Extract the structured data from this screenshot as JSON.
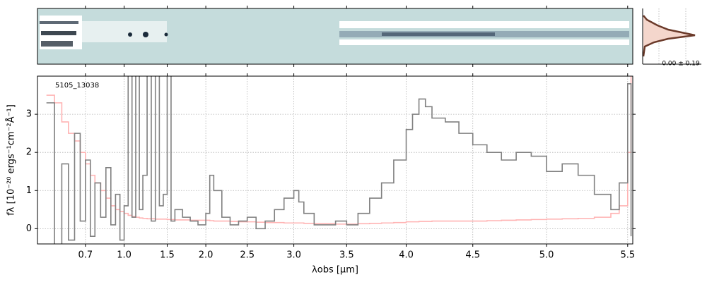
{
  "chart_data": {
    "type": "step",
    "annotation": "5105_13038",
    "profile_label": "0.00 ± 0.19",
    "x_label": "λobs [μm]",
    "y_label": "fλ [10⁻²⁰ ergs⁻¹cm⁻²Å⁻¹]",
    "x": [
      0.52,
      0.55,
      0.58,
      0.61,
      0.64,
      0.67,
      0.7,
      0.73,
      0.76,
      0.8,
      0.84,
      0.88,
      0.92,
      0.96,
      1.0,
      1.04,
      1.08,
      1.12,
      1.16,
      1.2,
      1.25,
      1.3,
      1.35,
      1.4,
      1.45,
      1.5,
      1.55,
      1.6,
      1.7,
      1.8,
      1.9,
      2.0,
      2.05,
      2.1,
      2.2,
      2.3,
      2.4,
      2.5,
      2.6,
      2.7,
      2.8,
      2.9,
      3.0,
      3.05,
      3.1,
      3.2,
      3.3,
      3.4,
      3.5,
      3.6,
      3.7,
      3.8,
      3.9,
      4.0,
      4.05,
      4.1,
      4.15,
      4.2,
      4.3,
      4.4,
      4.5,
      4.6,
      4.7,
      4.8,
      4.9,
      5.0,
      5.1,
      5.2,
      5.3,
      5.4,
      5.45,
      5.5,
      5.52
    ],
    "series": [
      {
        "color": "#ffb3b3",
        "values": [
          3.5,
          3.3,
          2.8,
          2.5,
          2.3,
          2.0,
          1.7,
          1.4,
          1.2,
          1.0,
          0.8,
          0.6,
          0.5,
          0.45,
          0.4,
          0.35,
          0.32,
          0.3,
          0.28,
          0.27,
          0.26,
          0.26,
          0.25,
          0.25,
          0.25,
          0.24,
          0.24,
          0.23,
          0.23,
          0.22,
          0.22,
          0.22,
          0.21,
          0.2,
          0.2,
          0.19,
          0.18,
          0.18,
          0.17,
          0.16,
          0.16,
          0.15,
          0.15,
          0.15,
          0.14,
          0.13,
          0.13,
          0.12,
          0.12,
          0.13,
          0.14,
          0.15,
          0.16,
          0.18,
          0.18,
          0.19,
          0.19,
          0.2,
          0.2,
          0.2,
          0.2,
          0.21,
          0.22,
          0.23,
          0.24,
          0.25,
          0.26,
          0.27,
          0.3,
          0.4,
          0.6,
          2.0,
          4.0
        ]
      },
      {
        "color": "#808080",
        "values": [
          3.3,
          -0.5,
          1.7,
          -0.3,
          2.5,
          0.2,
          1.8,
          -0.2,
          1.2,
          0.3,
          1.6,
          0.1,
          0.9,
          -0.3,
          0.6,
          4.5,
          0.3,
          4.2,
          0.5,
          1.4,
          4.5,
          0.2,
          4.3,
          0.6,
          0.9,
          4.5,
          0.2,
          0.5,
          0.3,
          0.2,
          0.1,
          0.4,
          1.4,
          1.0,
          0.3,
          0.1,
          0.2,
          0.3,
          0.0,
          0.2,
          0.5,
          0.8,
          1.0,
          0.7,
          0.4,
          0.1,
          0.1,
          0.2,
          0.1,
          0.4,
          0.8,
          1.2,
          1.8,
          2.6,
          3.0,
          3.4,
          3.2,
          2.9,
          2.8,
          2.5,
          2.2,
          2.0,
          1.8,
          2.0,
          1.9,
          1.5,
          1.7,
          1.4,
          0.9,
          0.5,
          1.2,
          3.8,
          -0.2
        ]
      }
    ],
    "xlim": [
      0.49,
      5.53
    ],
    "xticks": [
      0.7,
      {
        "value": 1,
        "label": "1.0"
      },
      1.5,
      {
        "value": 2,
        "label": "2.0"
      },
      2.5,
      {
        "value": 3,
        "label": "3.0"
      },
      3.5,
      {
        "value": 4,
        "label": "4.0"
      },
      4.5,
      {
        "value": 5,
        "label": "5.0"
      },
      5.5
    ],
    "ylim": [
      -0.4,
      4.0
    ],
    "yticks": [
      0,
      1,
      2,
      3
    ],
    "grid": true
  }
}
